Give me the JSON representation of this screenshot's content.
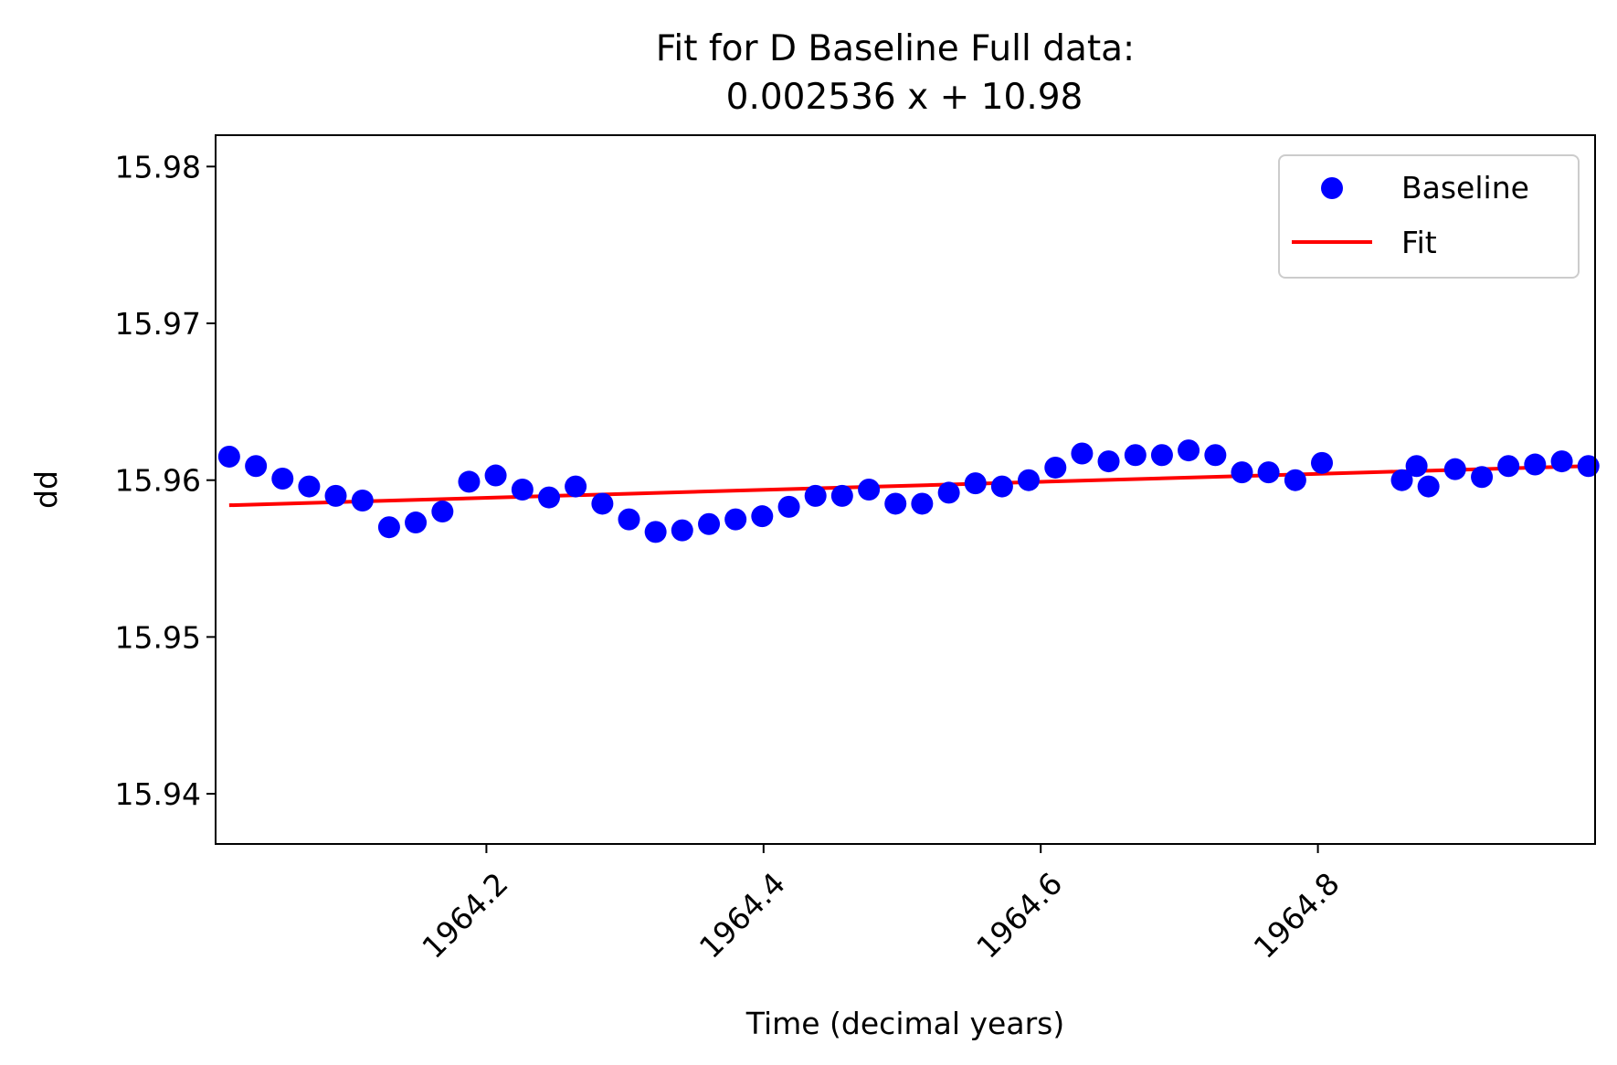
{
  "chart_data": {
    "type": "scatter",
    "title_line1": "Fit for D Baseline Full data:",
    "title_line2": "0.002536 x + 10.98",
    "xlabel": "Time (decimal years)",
    "ylabel": "dd",
    "xlim": [
      1964.0046,
      1965.0
    ],
    "ylim": [
      15.9368,
      15.982
    ],
    "xticks": [
      1964.2,
      1964.4,
      1964.6,
      1964.8
    ],
    "xtick_labels": [
      "1964.2",
      "1964.4",
      "1964.6",
      "1964.8"
    ],
    "yticks": [
      15.94,
      15.95,
      15.96,
      15.97,
      15.98
    ],
    "ytick_labels": [
      "15.94",
      "15.95",
      "15.96",
      "15.97",
      "15.98"
    ],
    "grid": false,
    "legend_position": "top-right",
    "series": [
      {
        "name": "Baseline",
        "kind": "scatter",
        "color": "#0000ff",
        "x": [
          1964.0144,
          1964.0337,
          1964.0529,
          1964.0721,
          1964.0913,
          1964.1106,
          1964.1298,
          1964.149,
          1964.1683,
          1964.1875,
          1964.2067,
          1964.226,
          1964.2452,
          1964.2644,
          1964.2837,
          1964.3029,
          1964.3221,
          1964.3413,
          1964.3606,
          1964.3798,
          1964.399,
          1964.4183,
          1964.4375,
          1964.4567,
          1964.476,
          1964.4952,
          1964.5144,
          1964.5337,
          1964.5529,
          1964.5721,
          1964.5913,
          1964.6106,
          1964.6298,
          1964.649,
          1964.6683,
          1964.6875,
          1964.7067,
          1964.726,
          1964.7452,
          1964.7644,
          1964.7837,
          1964.8029,
          1964.8606,
          1964.8712,
          1964.8798,
          1964.899,
          1964.9183,
          1964.9375,
          1964.9567,
          1964.976,
          1964.9952
        ],
        "y": [
          15.9615,
          15.9609,
          15.9601,
          15.9596,
          15.959,
          15.9587,
          15.957,
          15.9573,
          15.958,
          15.9599,
          15.9603,
          15.9594,
          15.9589,
          15.9596,
          15.9585,
          15.9575,
          15.9567,
          15.9568,
          15.9572,
          15.9575,
          15.9577,
          15.9583,
          15.959,
          15.959,
          15.9594,
          15.9585,
          15.9585,
          15.9592,
          15.9598,
          15.9596,
          15.96,
          15.9608,
          15.9617,
          15.9612,
          15.9616,
          15.9616,
          15.9619,
          15.9616,
          15.9605,
          15.9605,
          15.96,
          15.9611,
          15.96,
          15.9609,
          15.9596,
          15.9607,
          15.9602,
          15.9609,
          15.961,
          15.9612,
          15.9609
        ]
      },
      {
        "name": "Fit",
        "kind": "line",
        "color": "#ff0000",
        "x": [
          1964.0144,
          1964.9952
        ],
        "y": [
          15.9584,
          15.9609
        ]
      }
    ]
  }
}
